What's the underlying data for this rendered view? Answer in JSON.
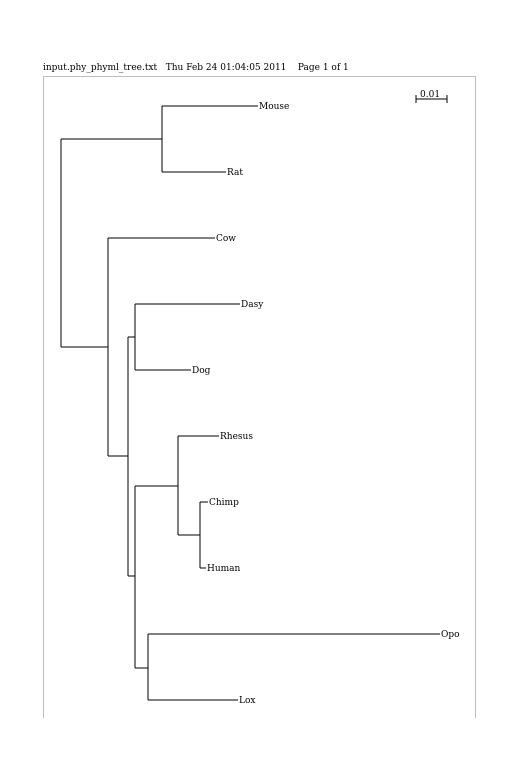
{
  "header": {
    "filename": "input.phy_phyml_tree.txt",
    "datetime": "Thu Feb 24 01:04:05 2011",
    "page": "Page 1 of 1"
  },
  "scale_bar": {
    "label": "0.01"
  },
  "tree": {
    "leaves": [
      "Mouse",
      "Rat",
      "Cow",
      "Dasy",
      "Dog",
      "Rhesus",
      "Chimp",
      "Human",
      "Opo",
      "Lox"
    ]
  }
}
